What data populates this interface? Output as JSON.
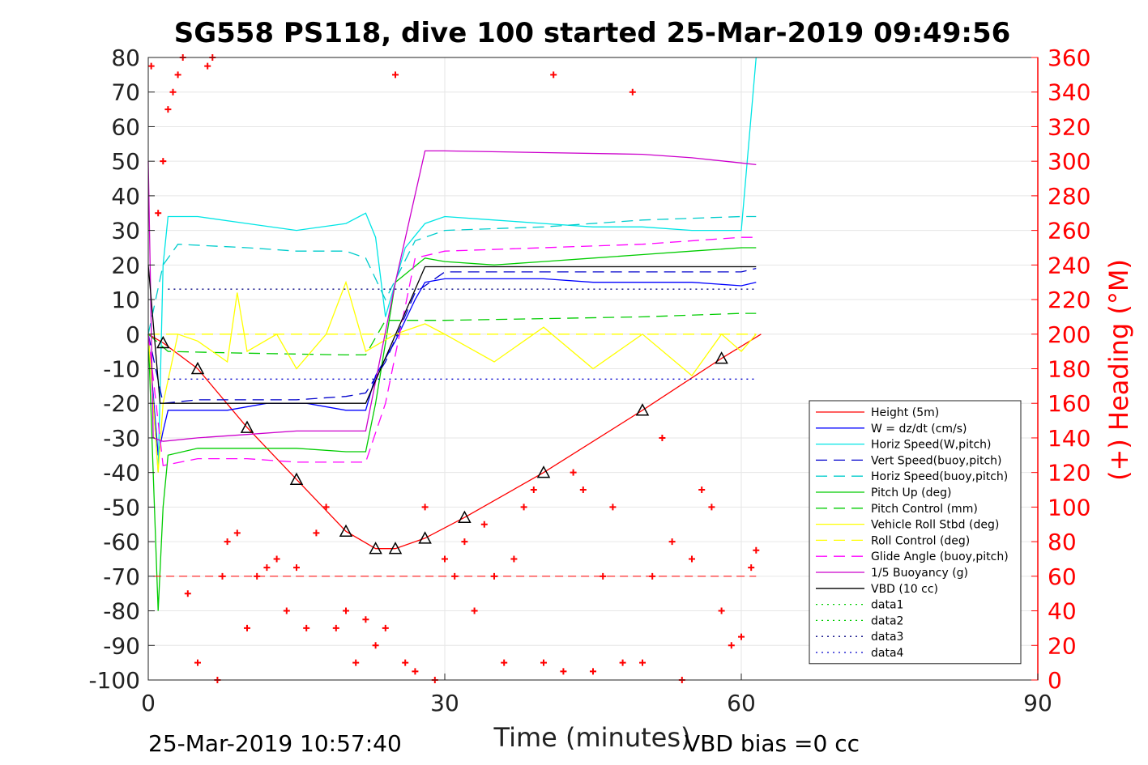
{
  "chart_data": {
    "type": "line",
    "title": "SG558 PS118, dive 100 started 25-Mar-2019 09:49:56",
    "xlabel": "Time (minutes)",
    "ylabel_right": "(+) Heading (°M)",
    "xlim": [
      0,
      90
    ],
    "ylim_left": [
      -100,
      80
    ],
    "ylim_right": [
      0,
      360
    ],
    "x_ticks": [
      "0",
      "30",
      "60",
      "90"
    ],
    "y_ticks_left": [
      "80",
      "70",
      "60",
      "50",
      "40",
      "30",
      "20",
      "10",
      "0",
      "-10",
      "-20",
      "-30",
      "-40",
      "-50",
      "-60",
      "-70",
      "-80",
      "-90",
      "-100"
    ],
    "y_ticks_right": [
      "360",
      "340",
      "320",
      "300",
      "280",
      "260",
      "240",
      "220",
      "200",
      "180",
      "160",
      "140",
      "120",
      "100",
      "80",
      "60",
      "40",
      "20",
      "0"
    ],
    "grid": true,
    "legend_position": "lower-right",
    "footer_left": "25-Mar-2019 10:57:40",
    "footer_right": "VBD bias =0 cc",
    "series": [
      {
        "name": "Height (5m)",
        "color": "#ff0000",
        "style": "solid",
        "x": [
          0,
          1.5,
          5,
          10,
          15,
          20,
          23,
          25,
          28,
          32,
          40,
          50,
          58,
          62
        ],
        "y": [
          0,
          -2.5,
          -10,
          -27,
          -42,
          -57,
          -62,
          -62,
          -59,
          -53,
          -40,
          -22,
          -7,
          0
        ]
      },
      {
        "name": "W = dz/dt (cm/s)",
        "color": "#0000ff",
        "style": "solid",
        "x": [
          0,
          1,
          1.5,
          2,
          4,
          8,
          12,
          16,
          20,
          22,
          23,
          25,
          27,
          28,
          30,
          35,
          40,
          45,
          50,
          55,
          60,
          61.5
        ],
        "y": [
          0,
          -35,
          -28,
          -22,
          -22,
          -22,
          -20,
          -20,
          -22,
          -22,
          -12,
          -2,
          10,
          15,
          16,
          16,
          16,
          15,
          15,
          15,
          14,
          15
        ]
      },
      {
        "name": "Horiz Speed(W,pitch)",
        "color": "#00e5e5",
        "style": "solid",
        "x": [
          0,
          1,
          1.5,
          2,
          5,
          10,
          15,
          20,
          22,
          23,
          24,
          26,
          28,
          30,
          35,
          40,
          45,
          50,
          55,
          60,
          61.5
        ],
        "y": [
          0,
          -40,
          20,
          34,
          34,
          32,
          30,
          32,
          35,
          28,
          5,
          25,
          32,
          34,
          33,
          32,
          31,
          31,
          30,
          30,
          80
        ]
      },
      {
        "name": "Vert Speed(buoy,pitch)",
        "color": "#0000cc",
        "style": "dashed",
        "x": [
          0,
          1.5,
          5,
          10,
          15,
          20,
          22,
          24,
          27,
          30,
          40,
          50,
          60,
          61.5
        ],
        "y": [
          0,
          -20,
          -19,
          -19,
          -19,
          -18,
          -17,
          -8,
          12,
          18,
          18,
          18,
          18,
          19
        ]
      },
      {
        "name": "Horiz Speed(buoy,pitch)",
        "color": "#00cccc",
        "style": "dashed",
        "x": [
          0,
          1.5,
          3,
          10,
          15,
          20,
          22,
          24,
          27,
          30,
          40,
          50,
          60,
          61.5
        ],
        "y": [
          0,
          20,
          26,
          25,
          24,
          24,
          22,
          10,
          27,
          30,
          31,
          33,
          34,
          34
        ]
      },
      {
        "name": "Pitch Up (deg)",
        "color": "#00cc00",
        "style": "solid",
        "x": [
          0,
          1,
          1.5,
          2,
          5,
          10,
          15,
          20,
          22,
          23,
          25,
          28,
          30,
          35,
          40,
          45,
          50,
          55,
          60,
          61.5
        ],
        "y": [
          0,
          -80,
          -50,
          -35,
          -33,
          -33,
          -33,
          -34,
          -34,
          -20,
          15,
          22,
          21,
          20,
          21,
          22,
          23,
          24,
          25,
          25
        ]
      },
      {
        "name": "Pitch Control (mm)",
        "color": "#00cc00",
        "style": "dashed",
        "x": [
          0,
          2,
          10,
          20,
          22,
          24,
          30,
          40,
          50,
          60,
          61.5
        ],
        "y": [
          0,
          -5,
          -5.5,
          -6,
          -6,
          4,
          4,
          4.5,
          5,
          6,
          6
        ]
      },
      {
        "name": "Vehicle Roll Stbd (deg)",
        "color": "#ffff00",
        "style": "solid",
        "x": [
          0,
          1,
          1.5,
          3,
          5,
          8,
          9,
          10,
          13,
          15,
          18,
          20,
          22,
          25,
          28,
          30,
          35,
          40,
          45,
          50,
          55,
          58,
          60,
          61.5
        ],
        "y": [
          0,
          -40,
          -20,
          0,
          -2,
          -8,
          12,
          -5,
          0,
          -10,
          0,
          15,
          -5,
          0,
          3,
          0,
          -8,
          2,
          -10,
          0,
          -12,
          0,
          -5,
          0
        ]
      },
      {
        "name": "Roll Control (deg)",
        "color": "#ffff00",
        "style": "dashed",
        "x": [
          0,
          61.5
        ],
        "y": [
          0,
          0
        ]
      },
      {
        "name": "Glide Angle (buoy,pitch)",
        "color": "#ff00ff",
        "style": "dashed",
        "x": [
          0,
          1.5,
          5,
          10,
          15,
          20,
          22,
          24,
          27,
          30,
          40,
          50,
          60,
          61.5
        ],
        "y": [
          0,
          -38,
          -36,
          -36,
          -37,
          -37,
          -37,
          -20,
          22,
          24,
          25,
          26,
          28,
          28
        ]
      },
      {
        "name": "1/5 Buoyancy (g)",
        "color": "#cc00cc",
        "style": "solid",
        "x": [
          0,
          0.5,
          1.5,
          5,
          10,
          15,
          20,
          22,
          25,
          28,
          30,
          40,
          50,
          55,
          60,
          61.5
        ],
        "y": [
          50,
          -30,
          -31,
          -30,
          -29,
          -28,
          -28,
          -28,
          15,
          53,
          53,
          52.5,
          52,
          51,
          49.5,
          49
        ]
      },
      {
        "name": "VBD (10 cc)",
        "color": "#000000",
        "style": "solid",
        "x": [
          0,
          1.2,
          20,
          22,
          28,
          30,
          40,
          50,
          61.5
        ],
        "y": [
          20,
          -20,
          -20,
          -20,
          19.5,
          19.5,
          19.5,
          19.5,
          19.5
        ]
      },
      {
        "name": "data1",
        "color": "#00cc00",
        "style": "dotted",
        "x": [],
        "y": []
      },
      {
        "name": "data2",
        "color": "#00cc00",
        "style": "dotted",
        "x": [],
        "y": []
      },
      {
        "name": "data3",
        "color": "#000080",
        "style": "dotted",
        "x": [
          2,
          61.5
        ],
        "y": [
          13,
          13
        ]
      },
      {
        "name": "data4",
        "color": "#0000cc",
        "style": "dotted",
        "x": [
          2,
          61.5
        ],
        "y": [
          -13,
          -13
        ]
      }
    ],
    "heading_axis_right": {
      "color": "#ff0000",
      "marker": "+",
      "reference_level": 60,
      "x": [
        0.3,
        1,
        1.5,
        2,
        2.5,
        3,
        3.5,
        4,
        5,
        6,
        6.5,
        7,
        7.5,
        8,
        9,
        10,
        11,
        12,
        13,
        14,
        15,
        16,
        17,
        18,
        19,
        20,
        21,
        22,
        23,
        24,
        25,
        26,
        27,
        28,
        29,
        30,
        31,
        32,
        33,
        34,
        35,
        36,
        37,
        38,
        39,
        40,
        41,
        42,
        43,
        44,
        45,
        46,
        47,
        48,
        49,
        50,
        51,
        52,
        53,
        54,
        55,
        56,
        57,
        58,
        59,
        60,
        61,
        61.5
      ],
      "y": [
        355,
        270,
        300,
        330,
        340,
        350,
        360,
        50,
        10,
        355,
        360,
        0,
        60,
        80,
        85,
        30,
        60,
        65,
        70,
        40,
        65,
        30,
        85,
        100,
        30,
        40,
        10,
        35,
        20,
        30,
        350,
        10,
        5,
        100,
        0,
        70,
        60,
        80,
        40,
        90,
        60,
        10,
        70,
        100,
        110,
        10,
        350,
        5,
        120,
        110,
        5,
        60,
        100,
        10,
        340,
        10,
        60,
        140,
        80,
        0,
        70,
        110,
        100,
        40,
        20,
        25,
        65,
        75
      ]
    }
  }
}
